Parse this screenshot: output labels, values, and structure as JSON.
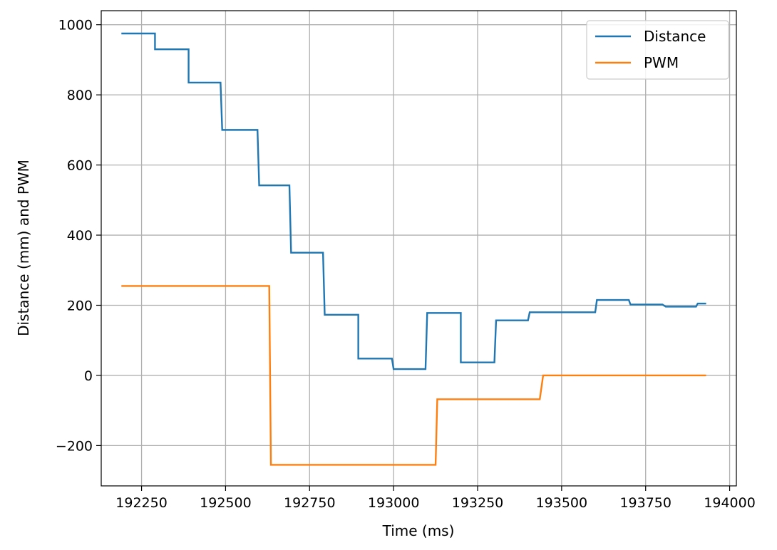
{
  "chart_data": {
    "type": "line",
    "xlabel": "Time (ms)",
    "ylabel": "Distance (mm) and PWM",
    "xlim": [
      192130,
      194020
    ],
    "ylim": [
      -315,
      1040
    ],
    "xticks": [
      192250,
      192500,
      192750,
      193000,
      193250,
      193500,
      193750,
      194000
    ],
    "xtick_labels": [
      "192250",
      "192500",
      "192750",
      "193000",
      "193250",
      "193500",
      "193750",
      "194000"
    ],
    "yticks": [
      -200,
      0,
      200,
      400,
      600,
      800,
      1000
    ],
    "ytick_labels": [
      "−200",
      "0",
      "200",
      "400",
      "600",
      "800",
      "1000"
    ],
    "grid": true,
    "legend_position": "top-right",
    "series": [
      {
        "name": "Distance",
        "color": "#1f77b4",
        "x": [
          192190,
          192290,
          192290,
          192390,
          192390,
          192485,
          192490,
          192595,
          192600,
          192690,
          192695,
          192790,
          192795,
          192895,
          192895,
          192995,
          193000,
          193095,
          193100,
          193200,
          193200,
          193300,
          193305,
          193400,
          193405,
          193600,
          193605,
          193700,
          193705,
          193800,
          193810,
          193900,
          193905,
          193930
        ],
        "y": [
          975,
          975,
          930,
          930,
          835,
          835,
          700,
          700,
          542,
          542,
          350,
          350,
          173,
          173,
          48,
          48,
          18,
          18,
          178,
          178,
          37,
          37,
          157,
          157,
          180,
          180,
          215,
          215,
          202,
          202,
          196,
          196,
          205,
          205
        ]
      },
      {
        "name": "PWM",
        "color": "#ff7f0e",
        "x": [
          192190,
          192630,
          192635,
          193125,
          193130,
          193435,
          193445,
          193930
        ],
        "y": [
          255,
          255,
          -255,
          -255,
          -68,
          -68,
          0,
          0
        ]
      }
    ]
  }
}
